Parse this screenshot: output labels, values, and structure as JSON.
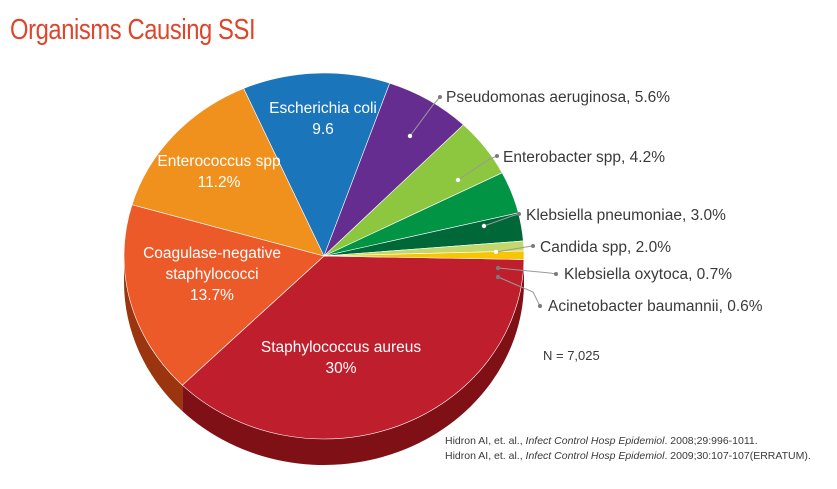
{
  "title": "Organisms Causing SSI",
  "note": "N = 7,025",
  "citations": [
    {
      "pre": "Hidron AI, et. al., ",
      "journal": "Infect Control Hosp Epidemiol",
      "post": ". 2008;29:996-1011."
    },
    {
      "pre": "Hidron AI, et. al., ",
      "journal": "Infect Control Hosp Epidemiol",
      "post": ". 2009;30:107-107(ERRATUM)."
    }
  ],
  "chart_data": {
    "type": "pie",
    "title": "Organisms Causing SSI",
    "note": "N = 7,025",
    "slices": [
      {
        "label": "Staphylococcus aureus",
        "value_text": "30%",
        "value": 30,
        "color": "#bf1e2d",
        "side": "#7e1016",
        "placement": "inside",
        "lines": [
          "Staphylococcus aureus"
        ]
      },
      {
        "label": "Coagulase-negative staphylococci",
        "value_text": "13.7%",
        "value": 13.7,
        "color": "#ec5a29",
        "side": "#9a3510",
        "placement": "inside",
        "lines": [
          "Coagulase-negative",
          "staphylococci"
        ]
      },
      {
        "label": "Enterococcus spp",
        "value_text": "11.2%",
        "value": 11.2,
        "color": "#f0901d",
        "side": "#a85f0d",
        "placement": "inside",
        "lines": [
          "Enterococcus spp"
        ]
      },
      {
        "label": "Escherichia coli",
        "value_text": "9.6",
        "value": 9.6,
        "color": "#1b75bb",
        "side": "#0f4a78",
        "placement": "inside",
        "lines": [
          "Escherichia coli"
        ]
      },
      {
        "label": "Pseudomonas aeruginosa",
        "value_text": "5.6%",
        "value": 5.6,
        "color": "#662d91",
        "side": "#3f1a5a",
        "placement": "outside",
        "text": "Pseudomonas aeruginosa, 5.6%"
      },
      {
        "label": "Enterobacter spp",
        "value_text": "4.2%",
        "value": 4.2,
        "color": "#8dc63f",
        "side": "#5a8024",
        "placement": "outside",
        "text": "Enterobacter spp, 4.2%"
      },
      {
        "label": "Klebsiella pneumoniae",
        "value_text": "3.0%",
        "value": 3.0,
        "color": "#009444",
        "side": "#005c2a",
        "placement": "outside",
        "text": "Klebsiella pneumoniae, 3.0%"
      },
      {
        "label": "Candida spp",
        "value_text": "2.0%",
        "value": 2.0,
        "color": "#006838",
        "side": "#003d21",
        "placement": "outside",
        "text": "Candida spp, 2.0%"
      },
      {
        "label": "Klebsiella oxytoca",
        "value_text": "0.7%",
        "value": 0.7,
        "color": "#c2d86b",
        "side": "#7f8f3f",
        "placement": "outside",
        "text": "Klebsiella oxytoca, 0.7%"
      },
      {
        "label": "Acinetobacter baumannii",
        "value_text": "0.6%",
        "value": 0.6,
        "color": "#f7c600",
        "side": "#a88700",
        "placement": "outside",
        "text": "Acinetobacter baumannii, 0.6%"
      }
    ]
  }
}
